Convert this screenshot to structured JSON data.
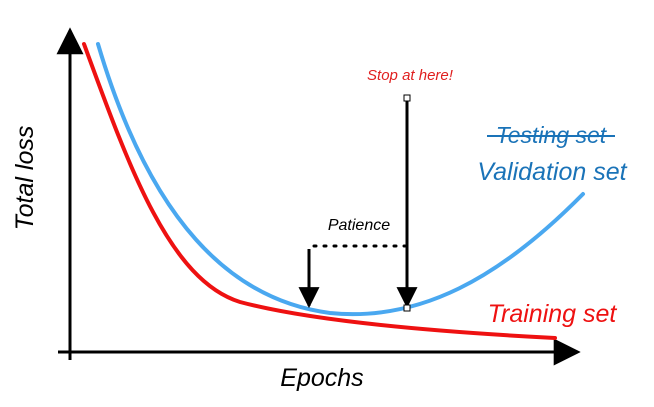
{
  "labels": {
    "y_axis": "Total loss",
    "x_axis": "Epochs",
    "stop": "Stop at here!",
    "patience": "Patience",
    "testing": "Testing set",
    "validation": "Validation set",
    "training": "Training set"
  },
  "colors": {
    "training": "#ee1111",
    "validation": "#4aa8f0",
    "validation_text": "#1a73b8",
    "stop_text": "#e02020",
    "axis": "#000000"
  }
}
